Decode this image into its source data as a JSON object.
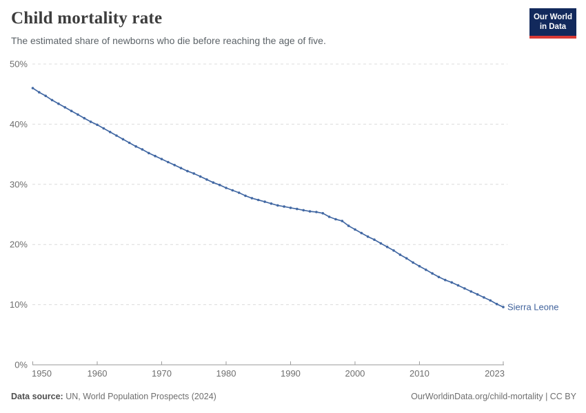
{
  "header": {
    "title": "Child mortality rate",
    "subtitle": "The estimated share of newborns who die before reaching the age of five.",
    "logo": {
      "line1": "Our World",
      "line2": "in Data"
    }
  },
  "footer": {
    "source_label": "Data source:",
    "source_text": " UN, World Population Prospects (2024)",
    "rights": "OurWorldinData.org/child-mortality | CC BY"
  },
  "colors": {
    "line": "#4268a3",
    "series_label": "#41639c",
    "grid": "#dcdcdc",
    "axis": "#9a9a9a",
    "tick_text": "#6e6e6e",
    "logo_bg": "#12295c",
    "logo_red": "#d93a35"
  },
  "chart_data": {
    "type": "line",
    "title": "Child mortality rate",
    "subtitle": "The estimated share of newborns who die before reaching the age of five.",
    "xlabel": "",
    "ylabel": "",
    "xlim": [
      1950,
      2023
    ],
    "ylim": [
      0,
      50
    ],
    "grid": "horizontal-dashed",
    "legend_position": "end-of-line-label",
    "x_ticks": [
      1950,
      1960,
      1970,
      1980,
      1990,
      2000,
      2010,
      2023
    ],
    "y_ticks": [
      "0%",
      "10%",
      "20%",
      "30%",
      "40%",
      "50%"
    ],
    "series": [
      {
        "name": "Sierra Leone",
        "color": "#4268a3",
        "years": [
          1950,
          1951,
          1952,
          1953,
          1954,
          1955,
          1956,
          1957,
          1958,
          1959,
          1960,
          1961,
          1962,
          1963,
          1964,
          1965,
          1966,
          1967,
          1968,
          1969,
          1970,
          1971,
          1972,
          1973,
          1974,
          1975,
          1976,
          1977,
          1978,
          1979,
          1980,
          1981,
          1982,
          1983,
          1984,
          1985,
          1986,
          1987,
          1988,
          1989,
          1990,
          1991,
          1992,
          1993,
          1994,
          1995,
          1996,
          1997,
          1998,
          1999,
          2000,
          2001,
          2002,
          2003,
          2004,
          2005,
          2006,
          2007,
          2008,
          2009,
          2010,
          2011,
          2012,
          2013,
          2014,
          2015,
          2016,
          2017,
          2018,
          2019,
          2020,
          2021,
          2022,
          2023
        ],
        "values": [
          46.0,
          45.3,
          44.7,
          44.0,
          43.4,
          42.8,
          42.2,
          41.6,
          41.0,
          40.4,
          39.9,
          39.3,
          38.7,
          38.1,
          37.5,
          36.9,
          36.3,
          35.8,
          35.2,
          34.7,
          34.2,
          33.7,
          33.2,
          32.7,
          32.2,
          31.8,
          31.3,
          30.8,
          30.3,
          29.9,
          29.4,
          29.0,
          28.6,
          28.1,
          27.7,
          27.4,
          27.1,
          26.8,
          26.5,
          26.3,
          26.1,
          25.9,
          25.7,
          25.5,
          25.4,
          25.2,
          24.6,
          24.2,
          23.9,
          23.1,
          22.5,
          21.9,
          21.3,
          20.8,
          20.2,
          19.6,
          19.0,
          18.3,
          17.7,
          17.0,
          16.4,
          15.8,
          15.2,
          14.6,
          14.1,
          13.7,
          13.2,
          12.7,
          12.2,
          11.7,
          11.2,
          10.7,
          10.1,
          9.6
        ]
      }
    ]
  }
}
